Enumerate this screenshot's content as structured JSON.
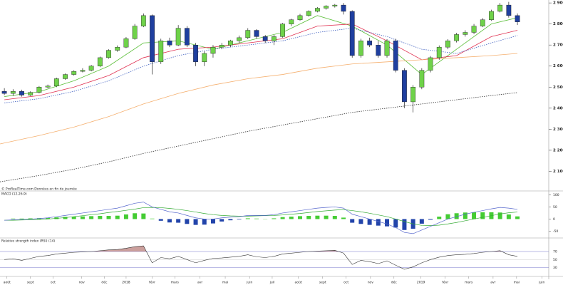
{
  "chart_data": {
    "type": "candlestick",
    "watermark": "© ProRealTime.com  Données en fin de journée",
    "xlim": [
      -0.5,
      62.6
    ],
    "xticks": [
      {
        "value": 0.3,
        "label": "août"
      },
      {
        "value": 3,
        "label": "sept"
      },
      {
        "value": 5.6,
        "label": "oct"
      },
      {
        "value": 8.9,
        "label": "nov"
      },
      {
        "value": 11.5,
        "label": "déc"
      },
      {
        "value": 14,
        "label": "2018"
      },
      {
        "value": 17,
        "label": "févr"
      },
      {
        "value": 19.6,
        "label": "mars"
      },
      {
        "value": 22.5,
        "label": "avr"
      },
      {
        "value": 25.4,
        "label": "mai"
      },
      {
        "value": 28.2,
        "label": "juin"
      },
      {
        "value": 30.8,
        "label": "juil"
      },
      {
        "value": 33.8,
        "label": "août"
      },
      {
        "value": 36.6,
        "label": "sept"
      },
      {
        "value": 39.3,
        "label": "oct"
      },
      {
        "value": 42.1,
        "label": "nov"
      },
      {
        "value": 44.8,
        "label": "déc"
      },
      {
        "value": 47.9,
        "label": "2019"
      },
      {
        "value": 50.7,
        "label": "févr"
      },
      {
        "value": 53.4,
        "label": "mars"
      },
      {
        "value": 56.2,
        "label": "avr"
      },
      {
        "value": 58.9,
        "label": "mai"
      },
      {
        "value": 61.8,
        "label": "juin"
      }
    ],
    "ylim": [
      2010,
      2914
    ],
    "yticks": [
      {
        "value": 2100,
        "label": "2 100"
      },
      {
        "value": 2200,
        "label": "2 200"
      },
      {
        "value": 2300,
        "label": "2 300"
      },
      {
        "value": 2400,
        "label": "2 400"
      },
      {
        "value": 2500,
        "label": "2 500"
      },
      {
        "value": 2600,
        "label": "2 600"
      },
      {
        "value": 2700,
        "label": "2 700"
      },
      {
        "value": 2800,
        "label": "2 800"
      },
      {
        "value": 2900,
        "label": "2 900"
      }
    ],
    "up_color": "#6fd24a",
    "down_color": "#1f3f9f",
    "open": [
      2480,
      2470,
      2480,
      2462,
      2475,
      2500,
      2505,
      2540,
      2560,
      2575,
      2580,
      2600,
      2640,
      2675,
      2690,
      2730,
      2790,
      2840,
      2620,
      2720,
      2700,
      2780,
      2700,
      2620,
      2660,
      2690,
      2700,
      2720,
      2735,
      2770,
      2740,
      2720,
      2740,
      2800,
      2820,
      2840,
      2860,
      2875,
      2885,
      2890,
      2860,
      2650,
      2720,
      2700,
      2650,
      2720,
      2580,
      2430,
      2500,
      2580,
      2640,
      2690,
      2720,
      2750,
      2760,
      2790,
      2820,
      2860,
      2890,
      2840
    ],
    "high": [
      2495,
      2490,
      2488,
      2480,
      2505,
      2512,
      2545,
      2565,
      2580,
      2590,
      2605,
      2645,
      2680,
      2698,
      2738,
      2800,
      2850,
      2845,
      2730,
      2735,
      2795,
      2790,
      2710,
      2670,
      2700,
      2710,
      2725,
      2745,
      2780,
      2775,
      2748,
      2748,
      2805,
      2825,
      2848,
      2865,
      2880,
      2890,
      2895,
      2900,
      2865,
      2730,
      2735,
      2720,
      2728,
      2730,
      2590,
      2510,
      2590,
      2648,
      2698,
      2728,
      2758,
      2770,
      2800,
      2828,
      2868,
      2900,
      2905,
      2850
    ],
    "low": [
      2462,
      2458,
      2455,
      2458,
      2470,
      2495,
      2500,
      2535,
      2555,
      2570,
      2575,
      2595,
      2635,
      2668,
      2685,
      2725,
      2785,
      2560,
      2610,
      2690,
      2695,
      2690,
      2600,
      2600,
      2640,
      2680,
      2690,
      2710,
      2728,
      2730,
      2710,
      2700,
      2735,
      2790,
      2815,
      2835,
      2855,
      2868,
      2878,
      2845,
      2640,
      2640,
      2690,
      2640,
      2640,
      2570,
      2400,
      2380,
      2490,
      2570,
      2630,
      2680,
      2712,
      2740,
      2752,
      2785,
      2815,
      2855,
      2830,
      2795
    ],
    "close": [
      2470,
      2480,
      2462,
      2475,
      2500,
      2505,
      2540,
      2560,
      2575,
      2580,
      2600,
      2640,
      2675,
      2690,
      2730,
      2790,
      2840,
      2620,
      2720,
      2700,
      2780,
      2700,
      2620,
      2660,
      2690,
      2700,
      2720,
      2735,
      2770,
      2740,
      2720,
      2740,
      2800,
      2820,
      2840,
      2860,
      2875,
      2885,
      2890,
      2860,
      2650,
      2720,
      2700,
      2650,
      2720,
      2580,
      2430,
      2500,
      2580,
      2640,
      2690,
      2720,
      2750,
      2760,
      2790,
      2820,
      2860,
      2890,
      2840,
      2810
    ],
    "averages": [
      {
        "color": "#5cbf3a",
        "dash": false,
        "x": [
          0,
          4,
          8,
          12,
          16,
          20,
          24,
          28,
          32,
          36,
          40,
          44,
          48,
          52,
          56,
          59
        ],
        "values": [
          2455,
          2478,
          2530,
          2600,
          2710,
          2720,
          2680,
          2720,
          2760,
          2840,
          2790,
          2700,
          2560,
          2680,
          2800,
          2830
        ]
      },
      {
        "color": "#e03050",
        "dash": false,
        "x": [
          0,
          4,
          8,
          12,
          16,
          20,
          24,
          28,
          32,
          36,
          40,
          44,
          48,
          52,
          56,
          59
        ],
        "values": [
          2440,
          2460,
          2500,
          2555,
          2640,
          2680,
          2690,
          2710,
          2730,
          2790,
          2800,
          2720,
          2630,
          2650,
          2740,
          2770
        ]
      },
      {
        "color": "#4060c0",
        "dash": true,
        "x": [
          0,
          4,
          8,
          12,
          16,
          20,
          24,
          28,
          32,
          36,
          40,
          44,
          48,
          52,
          56,
          59
        ],
        "values": [
          2425,
          2445,
          2480,
          2530,
          2600,
          2650,
          2680,
          2700,
          2720,
          2760,
          2780,
          2740,
          2680,
          2660,
          2710,
          2745
        ]
      },
      {
        "color": "#f5b070",
        "dash": false,
        "x": [
          -0.5,
          4,
          8,
          12,
          16,
          20,
          24,
          28,
          32,
          36,
          40,
          44,
          48,
          52,
          56,
          59
        ],
        "values": [
          2230,
          2270,
          2310,
          2360,
          2420,
          2470,
          2510,
          2540,
          2560,
          2590,
          2610,
          2620,
          2630,
          2640,
          2650,
          2660
        ]
      },
      {
        "color": "#333333",
        "dash": true,
        "x": [
          -0.5,
          4,
          8,
          12,
          16,
          20,
          24,
          28,
          32,
          36,
          40,
          44,
          48,
          52,
          56,
          59
        ],
        "values": [
          2050,
          2080,
          2110,
          2145,
          2185,
          2220,
          2255,
          2290,
          2320,
          2350,
          2380,
          2400,
          2420,
          2440,
          2460,
          2474
        ]
      }
    ],
    "macd": {
      "title": "MACD (12,26,9)",
      "ylim": [
        -75,
        110
      ],
      "yticks": [
        -50,
        0,
        50,
        100
      ],
      "pos_color": "#44cc33",
      "neg_color": "#2244aa",
      "line": [
        -5,
        -3,
        -2,
        0,
        2,
        5,
        10,
        15,
        20,
        25,
        30,
        35,
        40,
        45,
        55,
        65,
        70,
        50,
        40,
        30,
        25,
        15,
        5,
        0,
        0,
        5,
        8,
        10,
        15,
        15,
        15,
        18,
        25,
        30,
        35,
        40,
        45,
        48,
        50,
        45,
        20,
        10,
        0,
        -10,
        -20,
        -35,
        -55,
        -60,
        -45,
        -30,
        -15,
        0,
        10,
        20,
        28,
        35,
        42,
        48,
        45,
        40
      ],
      "signal": [
        -5,
        -5,
        -4,
        -3,
        -2,
        0,
        3,
        6,
        10,
        14,
        18,
        22,
        27,
        31,
        36,
        41,
        47,
        48,
        47,
        44,
        40,
        35,
        29,
        23,
        18,
        15,
        13,
        12,
        12,
        13,
        14,
        15,
        17,
        20,
        23,
        27,
        31,
        34,
        37,
        39,
        35,
        30,
        24,
        17,
        10,
        0,
        -10,
        -20,
        -26,
        -27,
        -25,
        -20,
        -14,
        -7,
        0,
        7,
        14,
        21,
        26,
        29
      ],
      "histogram": [
        0,
        2,
        2,
        3,
        4,
        5,
        7,
        9,
        10,
        11,
        12,
        13,
        13,
        14,
        19,
        24,
        23,
        2,
        -7,
        -14,
        -15,
        -20,
        -24,
        -23,
        -18,
        -10,
        -5,
        -2,
        3,
        2,
        1,
        3,
        8,
        10,
        12,
        13,
        14,
        14,
        13,
        6,
        -15,
        -20,
        -24,
        -27,
        -30,
        -35,
        -45,
        -40,
        -19,
        -3,
        10,
        20,
        24,
        27,
        28,
        28,
        28,
        27,
        19,
        11
      ]
    },
    "rsi": {
      "title": "Relative strength index (RSI) (14)",
      "ylim": [
        10,
        100
      ],
      "yticks": [
        30,
        50,
        70
      ],
      "overbought": 70,
      "values": [
        50,
        52,
        48,
        53,
        58,
        60,
        64,
        66,
        68,
        69,
        70,
        72,
        74,
        75,
        78,
        82,
        84,
        42,
        55,
        52,
        58,
        50,
        42,
        48,
        53,
        54,
        56,
        58,
        62,
        57,
        55,
        58,
        64,
        66,
        68,
        70,
        71,
        72,
        73,
        66,
        38,
        48,
        45,
        40,
        47,
        36,
        26,
        32,
        42,
        50,
        56,
        60,
        62,
        63,
        65,
        68,
        70,
        72,
        62,
        58
      ]
    }
  }
}
